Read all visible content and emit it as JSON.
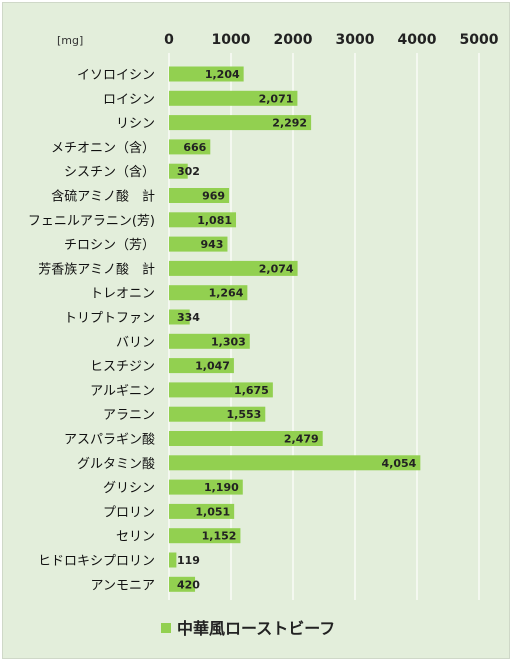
{
  "chart_data": {
    "type": "bar",
    "orientation": "horizontal",
    "unit": "[mg]",
    "categories": [
      "イソロイシン",
      "ロイシン",
      "リシン",
      "メチオニン（含）",
      "シスチン（含）",
      "含硫アミノ酸　計",
      "フェニルアラニン(芳)",
      "チロシン（芳）",
      "芳香族アミノ酸　計",
      "トレオニン",
      "トリプトファン",
      "バリン",
      "ヒスチジン",
      "アルギニン",
      "アラニン",
      "アスパラギン酸",
      "グルタミン酸",
      "グリシン",
      "プロリン",
      "セリン",
      "ヒドロキシプロリン",
      "アンモニア"
    ],
    "series": [
      {
        "name": "中華風ローストビーフ",
        "color": "#92d050",
        "values": [
          1204,
          2071,
          2292,
          666,
          302,
          969,
          1081,
          943,
          2074,
          1264,
          334,
          1303,
          1047,
          1675,
          1553,
          2479,
          4054,
          1190,
          1051,
          1152,
          119,
          420
        ],
        "value_labels": [
          "1,204",
          "2,071",
          "2,292",
          "666",
          "302",
          "969",
          "1,081",
          "943",
          "2,074",
          "1,264",
          "334",
          "1,303",
          "1,047",
          "1,675",
          "1,553",
          "2,479",
          "4,054",
          "1,190",
          "1,051",
          "1,152",
          "119",
          "420"
        ]
      }
    ],
    "x_ticks": [
      "0",
      "1000",
      "2000",
      "3000",
      "4000",
      "5000"
    ],
    "xlim": [
      0,
      5000
    ],
    "axis_position": "top",
    "grid": true,
    "legend_position": "bottom",
    "colors": {
      "background": "#e3eedb",
      "grid": "#ffffff",
      "bar": "#92d050"
    }
  }
}
